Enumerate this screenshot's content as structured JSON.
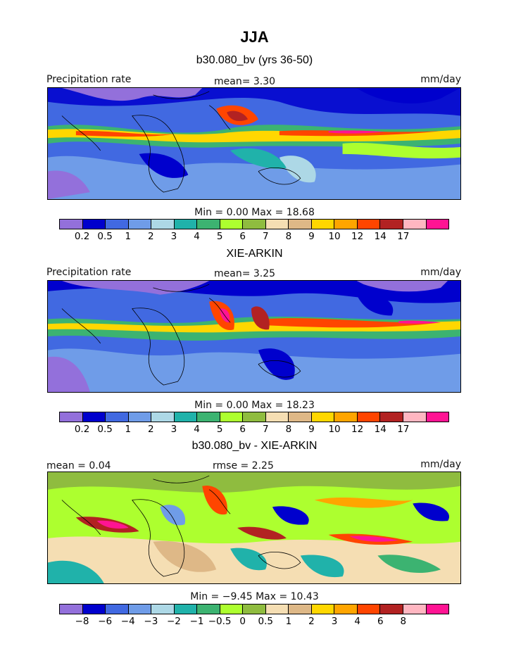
{
  "title": "JJA",
  "palette": [
    "#9370db",
    "#0000cd",
    "#4169e1",
    "#6f9ce8",
    "#add8e6",
    "#20b2aa",
    "#3cb371",
    "#adff2f",
    "#8fbc3f",
    "#f5deb3",
    "#deb887",
    "#ffd700",
    "#ffa500",
    "#ff4500",
    "#b22222",
    "#ffb6c1",
    "#ff1493"
  ],
  "panels": [
    {
      "name": "model",
      "subtitle": "b30.080_bv (yrs 36-50)",
      "left_label": "Precipitation rate",
      "center_label": "mean=    3.30",
      "right_label": "mm/day",
      "minmax": "Min =     0.00  Max =   18.68",
      "tick_labels": [
        "0.2",
        "0.5",
        "1",
        "2",
        "3",
        "4",
        "5",
        "6",
        "7",
        "8",
        "9",
        "10",
        "12",
        "14",
        "17"
      ]
    },
    {
      "name": "obs",
      "subtitle": "XIE-ARKIN",
      "left_label": "Precipitation rate",
      "center_label": "mean=    3.25",
      "right_label": "mm/day",
      "minmax": "Min =     0.00  Max =   18.23",
      "tick_labels": [
        "0.2",
        "0.5",
        "1",
        "2",
        "3",
        "4",
        "5",
        "6",
        "7",
        "8",
        "9",
        "10",
        "12",
        "14",
        "17"
      ]
    },
    {
      "name": "diff",
      "subtitle": "b30.080_bv - XIE-ARKIN",
      "left_label": "mean =    0.04",
      "center_label": "rmse =    2.25",
      "right_label": "mm/day",
      "minmax": "Min =   −9.45  Max =   10.43",
      "tick_labels": [
        "−8",
        "−6",
        "−4",
        "−3",
        "−2",
        "−1",
        "−0.5",
        "0",
        "0.5",
        "1",
        "2",
        "3",
        "4",
        "6",
        "8"
      ]
    }
  ]
}
